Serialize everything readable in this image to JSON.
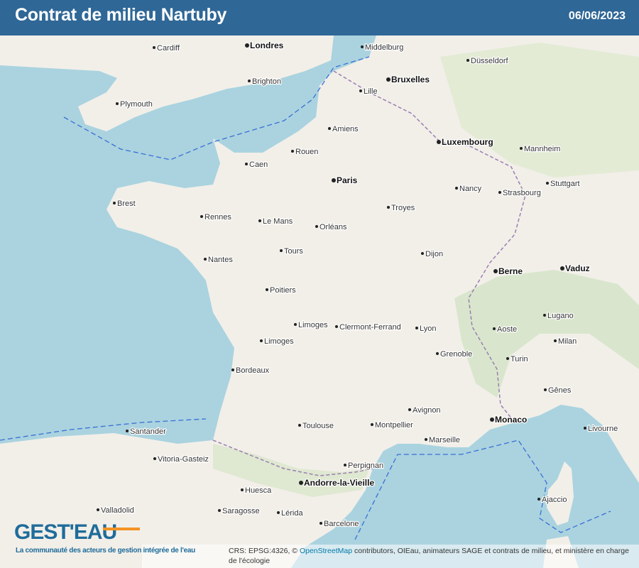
{
  "header": {
    "title": "Contrat de milieu Nartuby",
    "date": "06/06/2023"
  },
  "map": {
    "colors": {
      "sea": "#aad3df",
      "land": "#f2efe9",
      "header": "#2f6796",
      "border": "#3b6fd6",
      "logo": "#1f6c9a",
      "logo_accent": "#f39324"
    },
    "cities": [
      {
        "name": "Londres",
        "capital": true
      },
      {
        "name": "Paris",
        "capital": true
      },
      {
        "name": "Bruxelles",
        "capital": true
      },
      {
        "name": "Luxembourg",
        "capital": true
      },
      {
        "name": "Berne",
        "capital": true
      },
      {
        "name": "Monaco",
        "capital": true
      },
      {
        "name": "Andorre-la-Vieille",
        "capital": true
      },
      {
        "name": "Vaduz",
        "capital": true
      },
      {
        "name": "Marseille",
        "capital": false
      },
      {
        "name": "Lyon",
        "capital": false
      },
      {
        "name": "Toulouse",
        "capital": false
      },
      {
        "name": "Bordeaux",
        "capital": false
      },
      {
        "name": "Nantes",
        "capital": false
      },
      {
        "name": "Rennes",
        "capital": false
      },
      {
        "name": "Strasbourg",
        "capital": false
      },
      {
        "name": "Lille",
        "capital": false
      },
      {
        "name": "Barcelone",
        "capital": false
      },
      {
        "name": "Milan",
        "capital": false
      },
      {
        "name": "Turin",
        "capital": false
      },
      {
        "name": "Gênes",
        "capital": false
      },
      {
        "name": "Montpellier",
        "capital": false
      },
      {
        "name": "Rouen",
        "capital": false
      },
      {
        "name": "Caen",
        "capital": false
      },
      {
        "name": "Brest",
        "capital": false
      },
      {
        "name": "Limoges",
        "capital": false
      },
      {
        "name": "Clermont-Ferrand",
        "capital": false
      },
      {
        "name": "Dijon",
        "capital": false
      },
      {
        "name": "Orléans",
        "capital": false
      },
      {
        "name": "Tours",
        "capital": false
      },
      {
        "name": "Poitiers",
        "capital": false
      },
      {
        "name": "Le Mans",
        "capital": false
      },
      {
        "name": "Amiens",
        "capital": false
      },
      {
        "name": "Grenoble",
        "capital": false
      },
      {
        "name": "Avignon",
        "capital": false
      },
      {
        "name": "Perpignan",
        "capital": false
      },
      {
        "name": "Ajaccio",
        "capital": false
      },
      {
        "name": "Saragosse",
        "capital": false
      },
      {
        "name": "Santander",
        "capital": false
      },
      {
        "name": "Cardiff",
        "capital": false
      },
      {
        "name": "Plymouth",
        "capital": false
      },
      {
        "name": "Brighton",
        "capital": false
      },
      {
        "name": "Middelburg",
        "capital": false
      },
      {
        "name": "Düsseldorf",
        "capital": false
      },
      {
        "name": "Stuttgart",
        "capital": false
      },
      {
        "name": "Mannheim",
        "capital": false
      },
      {
        "name": "Troyes",
        "capital": false
      },
      {
        "name": "Nancy",
        "capital": false
      },
      {
        "name": "Limoges",
        "capital": false
      },
      {
        "name": "Aoste",
        "capital": false
      },
      {
        "name": "Lugano",
        "capital": false
      },
      {
        "name": "Livourne",
        "capital": false
      },
      {
        "name": "Vitoria-Gasteiz",
        "capital": false
      },
      {
        "name": "Huesca",
        "capital": false
      },
      {
        "name": "Lérida",
        "capital": false
      },
      {
        "name": "Valladolid",
        "capital": false
      }
    ]
  },
  "logo": {
    "text": "GEST'EAU",
    "tagline": "La communauté des acteurs de gestion intégrée de l'eau"
  },
  "attribution": {
    "prefix": "CRS: EPSG:4326, © ",
    "link": "OpenStreetMap",
    "suffix": " contributors, OIEau, animateurs SAGE et contrats de milieu, et ministère en charge de l'écologie"
  }
}
